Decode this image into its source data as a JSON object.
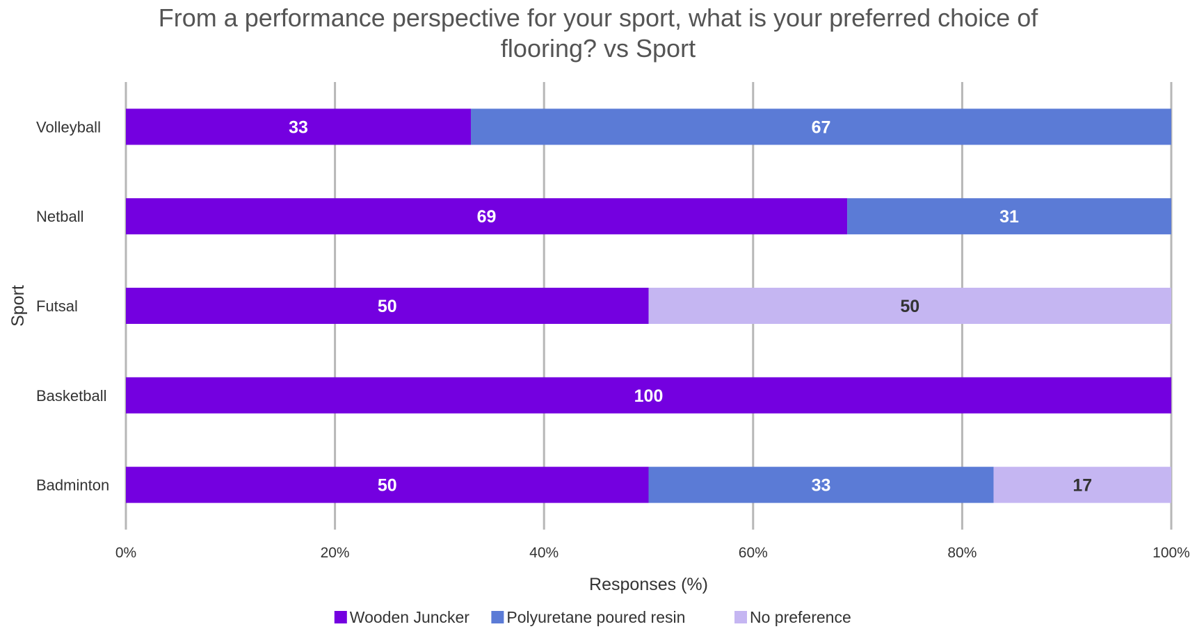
{
  "chart_data": {
    "type": "bar",
    "orientation": "horizontal",
    "stacked": true,
    "title_lines": [
      "From a performance perspective for your sport, what is your preferred choice of",
      "flooring? vs Sport"
    ],
    "xlabel": "Responses (%)",
    "ylabel": "Sport",
    "xlim": [
      0,
      100
    ],
    "x_ticks": [
      "0%",
      "20%",
      "40%",
      "60%",
      "80%",
      "100%"
    ],
    "grid": true,
    "legend_position": "bottom",
    "categories": [
      "Volleyball",
      "Netball",
      "Futsal",
      "Basketball",
      "Badminton"
    ],
    "series": [
      {
        "name": "Wooden Juncker",
        "color": "#7400e0",
        "label_color": "#ffffff",
        "values": [
          33,
          69,
          50,
          100,
          50
        ]
      },
      {
        "name": "Polyuretane poured resin",
        "color": "#5b7bd6",
        "label_color": "#ffffff",
        "values": [
          67,
          31,
          0,
          0,
          33
        ]
      },
      {
        "name": "No preference",
        "color": "#c5b6f2",
        "label_color": "#333333",
        "values": [
          0,
          0,
          50,
          0,
          17
        ]
      }
    ]
  }
}
